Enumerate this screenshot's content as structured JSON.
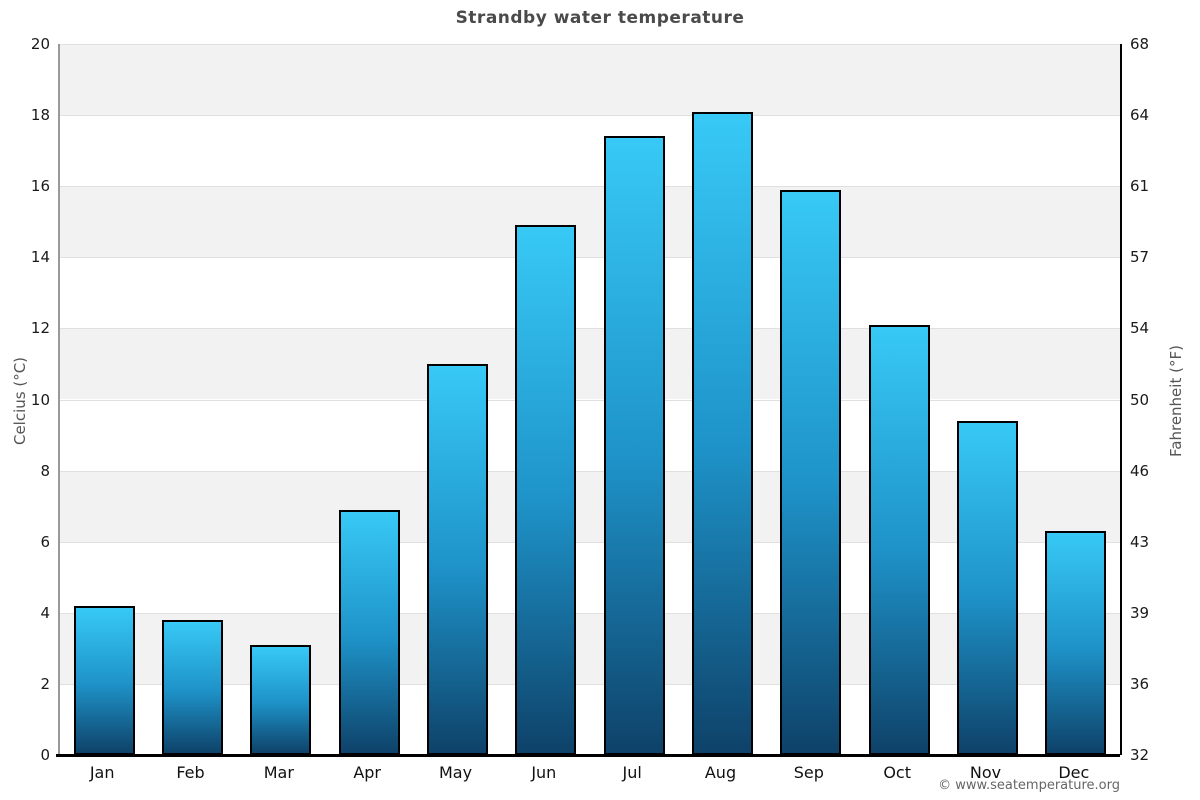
{
  "chart_data": {
    "type": "bar",
    "title": "Strandby water temperature",
    "categories": [
      "Jan",
      "Feb",
      "Mar",
      "Apr",
      "May",
      "Jun",
      "Jul",
      "Aug",
      "Sep",
      "Oct",
      "Nov",
      "Dec"
    ],
    "values": [
      4.2,
      3.8,
      3.1,
      6.9,
      11.0,
      14.9,
      17.4,
      18.1,
      15.9,
      12.1,
      9.4,
      6.3
    ],
    "ylabel_left": "Celcius (°C)",
    "ylabel_right": "Fahrenheit (°F)",
    "ylim": [
      0,
      20
    ],
    "celsius_ticks": [
      0,
      2,
      4,
      6,
      8,
      10,
      12,
      14,
      16,
      18,
      20
    ],
    "fahrenheit_ticks": [
      32,
      36,
      39,
      43,
      46,
      50,
      54,
      57,
      61,
      64,
      68
    ],
    "grid": "horizontal-bands-alternating",
    "legend": "none",
    "colors": {
      "bar_top": "#38c9f6",
      "bar_mid": "#1e93c9",
      "bar_bottom": "#0e4269",
      "bar_border": "#000000",
      "band_shade": "#f2f2f2",
      "band_light": "#ffffff",
      "gridline": "#e0e0e0",
      "axis_left": "#999999",
      "axis_right": "#000000",
      "axis_bottom": "#000000",
      "title_color": "#4a4a4a",
      "tick_label_color": "#1a1a1a",
      "axis_title_color": "#555555",
      "month_label_color": "#111111"
    }
  },
  "footer": {
    "copyright": "© www.seatemperature.org"
  }
}
